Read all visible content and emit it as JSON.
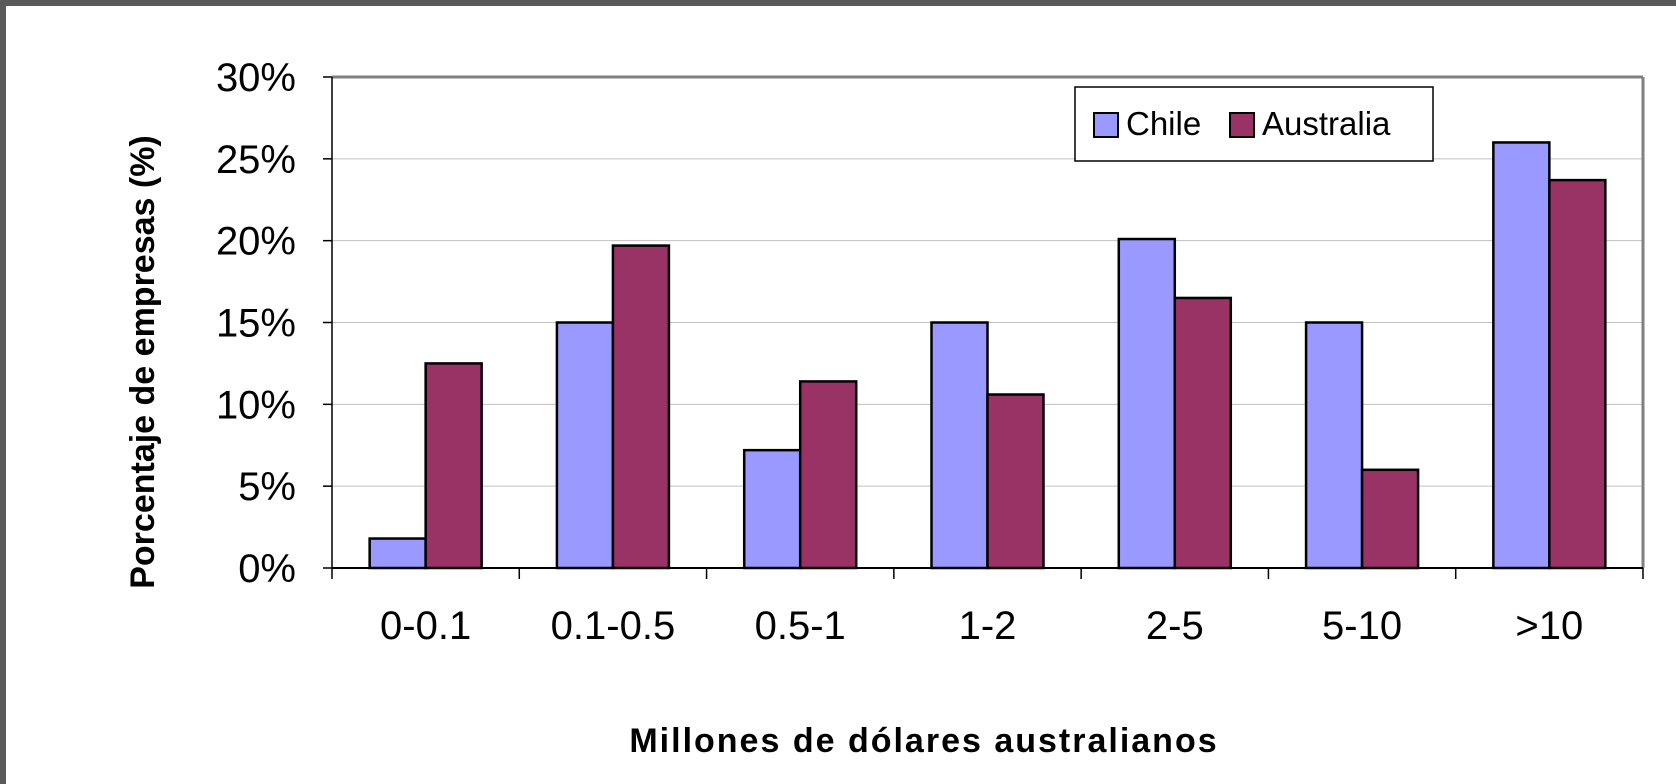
{
  "chart_data": {
    "type": "bar",
    "categories": [
      "0-0.1",
      "0.1-0.5",
      "0.5-1",
      "1-2",
      "2-5",
      "5-10",
      ">10"
    ],
    "series": [
      {
        "name": "Chile",
        "values": [
          1.8,
          15.0,
          7.2,
          15.0,
          20.1,
          15.0,
          26.0
        ],
        "color": "#9999FF"
      },
      {
        "name": "Australia",
        "values": [
          12.5,
          19.7,
          11.4,
          10.6,
          16.5,
          6.0,
          23.7
        ],
        "color": "#993366"
      }
    ],
    "ylabel": "Porcentaje de empresas (%)",
    "xlabel": "Millones de dólares australianos",
    "ylim": [
      0,
      30
    ],
    "yticks": [
      0,
      5,
      10,
      15,
      20,
      25,
      30
    ],
    "ytick_format": "%",
    "grid": true,
    "legend_position": "top-right",
    "gridline_color": "#c0c0c0",
    "axis_color": "#808080",
    "bar_outline_color": "#000000"
  }
}
